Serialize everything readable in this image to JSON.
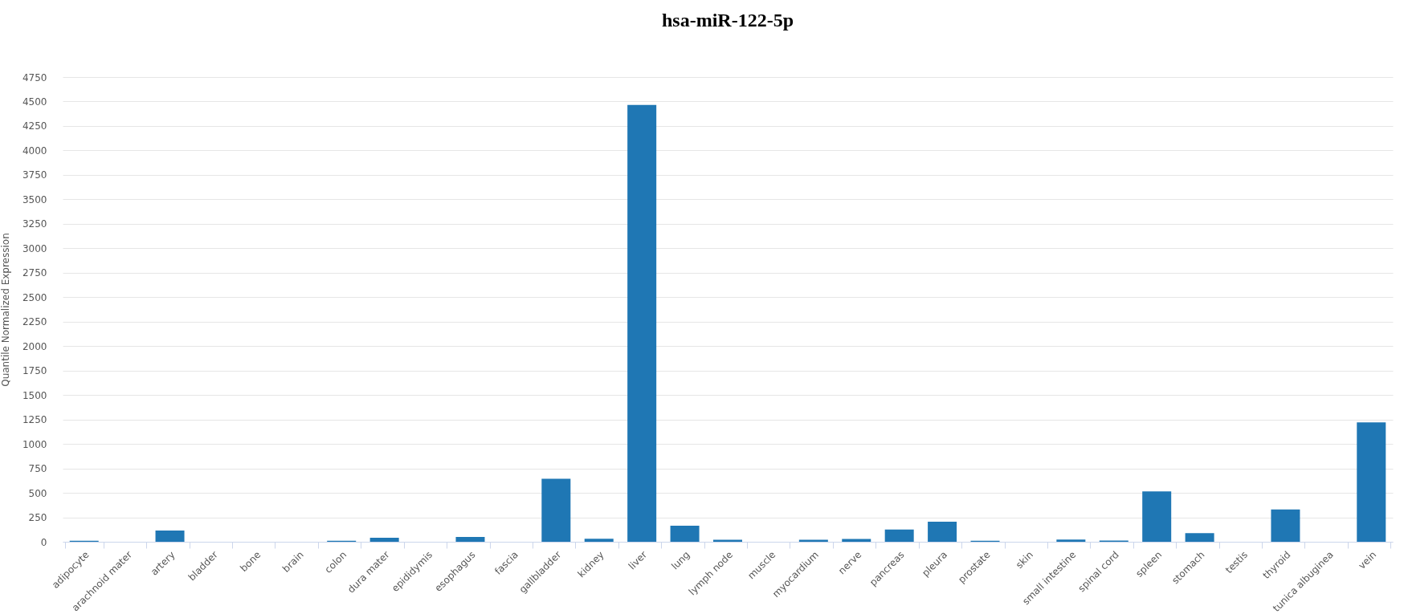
{
  "chart_data": {
    "type": "bar",
    "title": "hsa-miR-122-5p",
    "ylabel": "Quantile Normalized Expression",
    "categories": [
      "adipocyte",
      "arachnoid mater",
      "artery",
      "bladder",
      "bone",
      "brain",
      "colon",
      "dura mater",
      "epididymis",
      "esophagus",
      "fascia",
      "gallbladder",
      "kidney",
      "liver",
      "lung",
      "lymph node",
      "muscle",
      "myocardium",
      "nerve",
      "pancreas",
      "pleura",
      "prostate",
      "skin",
      "small intestine",
      "spinal cord",
      "spleen",
      "stomach",
      "testis",
      "thyroid",
      "tunica albuginea",
      "vein"
    ],
    "values": [
      10,
      0,
      115,
      0,
      0,
      0,
      10,
      40,
      0,
      50,
      0,
      645,
      30,
      4465,
      165,
      20,
      0,
      20,
      28,
      125,
      205,
      10,
      0,
      22,
      12,
      515,
      88,
      0,
      330,
      0,
      1220
    ],
    "color": "#1f77b4",
    "ylim": [
      0,
      4750
    ],
    "yticks": [
      0,
      250,
      500,
      750,
      1000,
      1250,
      1500,
      1750,
      2000,
      2250,
      2500,
      2750,
      3000,
      3250,
      3500,
      3750,
      4000,
      4250,
      4500,
      4750
    ],
    "grid": "y"
  }
}
